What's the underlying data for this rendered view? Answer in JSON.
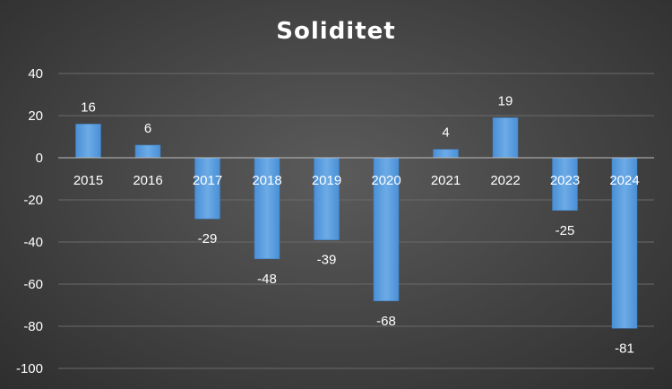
{
  "chart_data": {
    "type": "bar",
    "title": "Soliditet",
    "xlabel": "",
    "ylabel": "",
    "categories": [
      "2015",
      "2016",
      "2017",
      "2018",
      "2019",
      "2020",
      "2021",
      "2022",
      "2023",
      "2024"
    ],
    "values": [
      16,
      6,
      -29,
      -48,
      -39,
      -68,
      4,
      19,
      -25,
      -81
    ],
    "data_labels": [
      "16",
      "6",
      "-29",
      "-48",
      "-39",
      "-68",
      "4",
      "19",
      "-25",
      "-81"
    ],
    "ylim": [
      -100,
      40
    ],
    "yticks": [
      40,
      20,
      0,
      -20,
      -40,
      -60,
      -80,
      -100
    ],
    "ytick_labels": [
      "40",
      "20",
      "0",
      "-20",
      "-40",
      "-60",
      "-80",
      "-100"
    ],
    "grid": true,
    "legend": "none",
    "bar_color": "#5b9bd5"
  }
}
